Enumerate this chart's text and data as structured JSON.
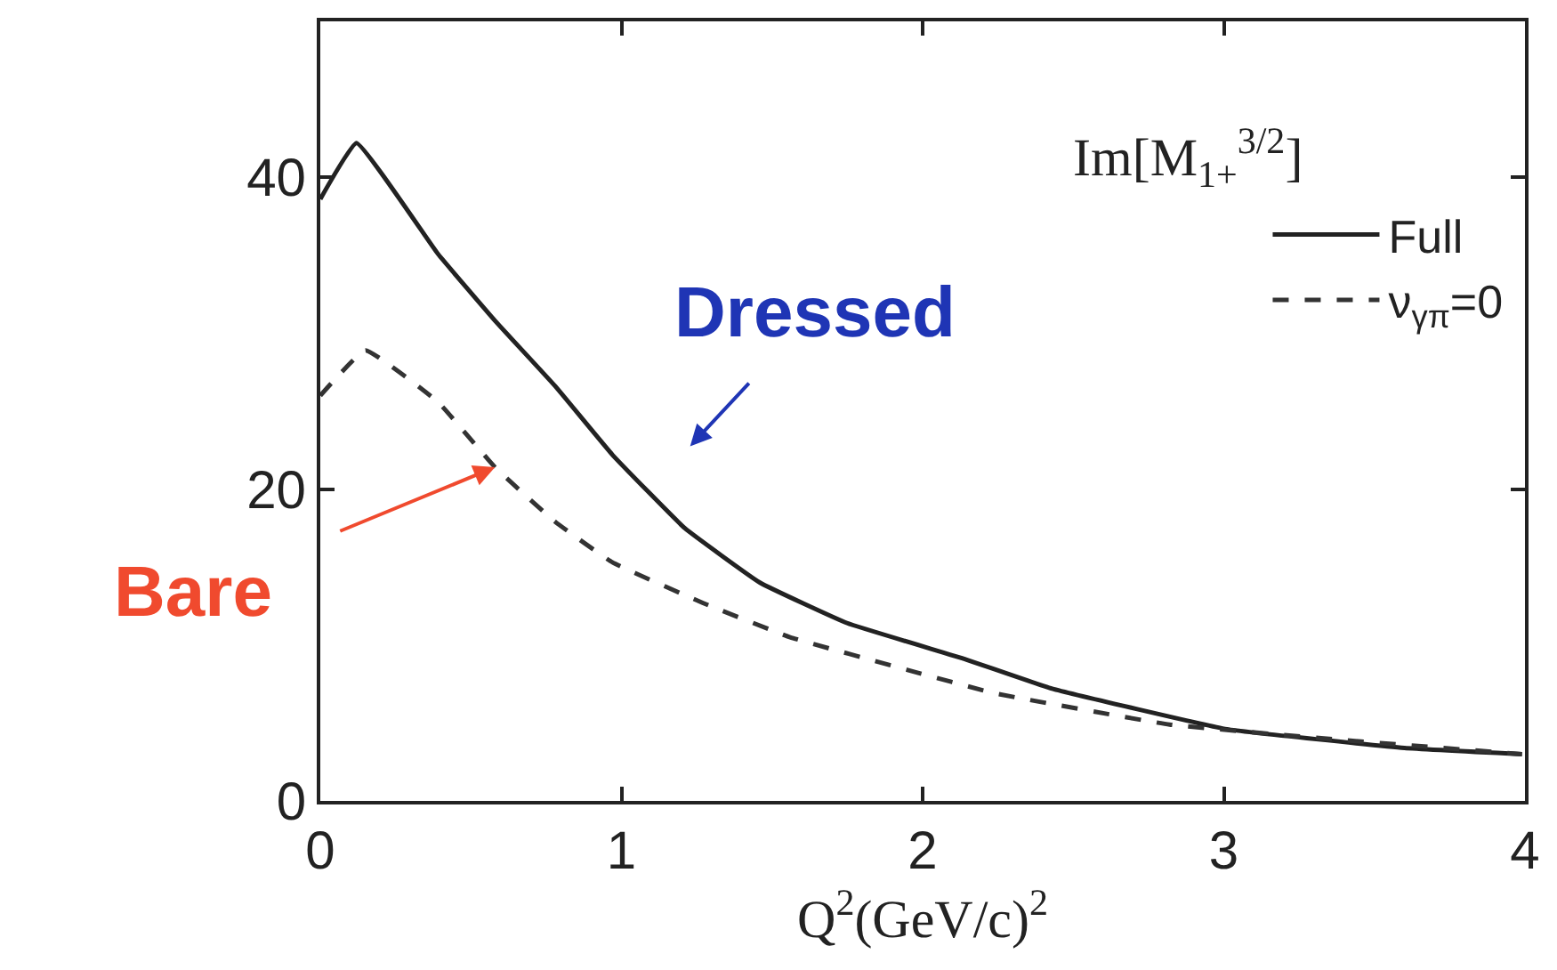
{
  "chart_data": {
    "type": "line",
    "xlabel": "Q$^{2}$(GeV/c)$^{2}$",
    "xlim": [
      0,
      4
    ],
    "xticks": [
      0,
      1,
      2,
      3,
      4
    ],
    "ylim": [
      0,
      50
    ],
    "yticks": [
      0,
      20,
      40
    ],
    "legend": "top right",
    "marker": "none",
    "annotations": [
      "Im[M$_{1+}$$^{3/2}$]",
      "Dressed",
      {
        "text": "Bare",
        "x": 0.58,
        "y": 21.4
      }
    ],
    "series": [
      {
        "name": "Full",
        "color": "#222222",
        "line_style": "solid",
        "x": [
          0,
          0.12,
          0.39,
          0.58,
          0.78,
          0.97,
          1.21,
          1.46,
          1.75,
          2.14,
          2.43,
          3.01,
          3.6,
          3.99
        ],
        "values": [
          38.6,
          42.2,
          35.1,
          30.8,
          26.6,
          22.2,
          17.5,
          14.0,
          11.4,
          9.1,
          7.2,
          4.6,
          3.4,
          3.0
        ]
      },
      {
        "name": "ν$_{γπ}$=0",
        "color": "#333333",
        "line_style": "dashed",
        "x": [
          0,
          0.15,
          0.39,
          0.58,
          0.78,
          0.97,
          1.27,
          1.56,
          1.95,
          2.24,
          2.82,
          3.4,
          3.99
        ],
        "values": [
          26.0,
          28.9,
          25.6,
          21.4,
          17.9,
          15.3,
          12.7,
          10.5,
          8.4,
          6.9,
          4.9,
          3.9,
          3.0
        ]
      }
    ]
  }
}
